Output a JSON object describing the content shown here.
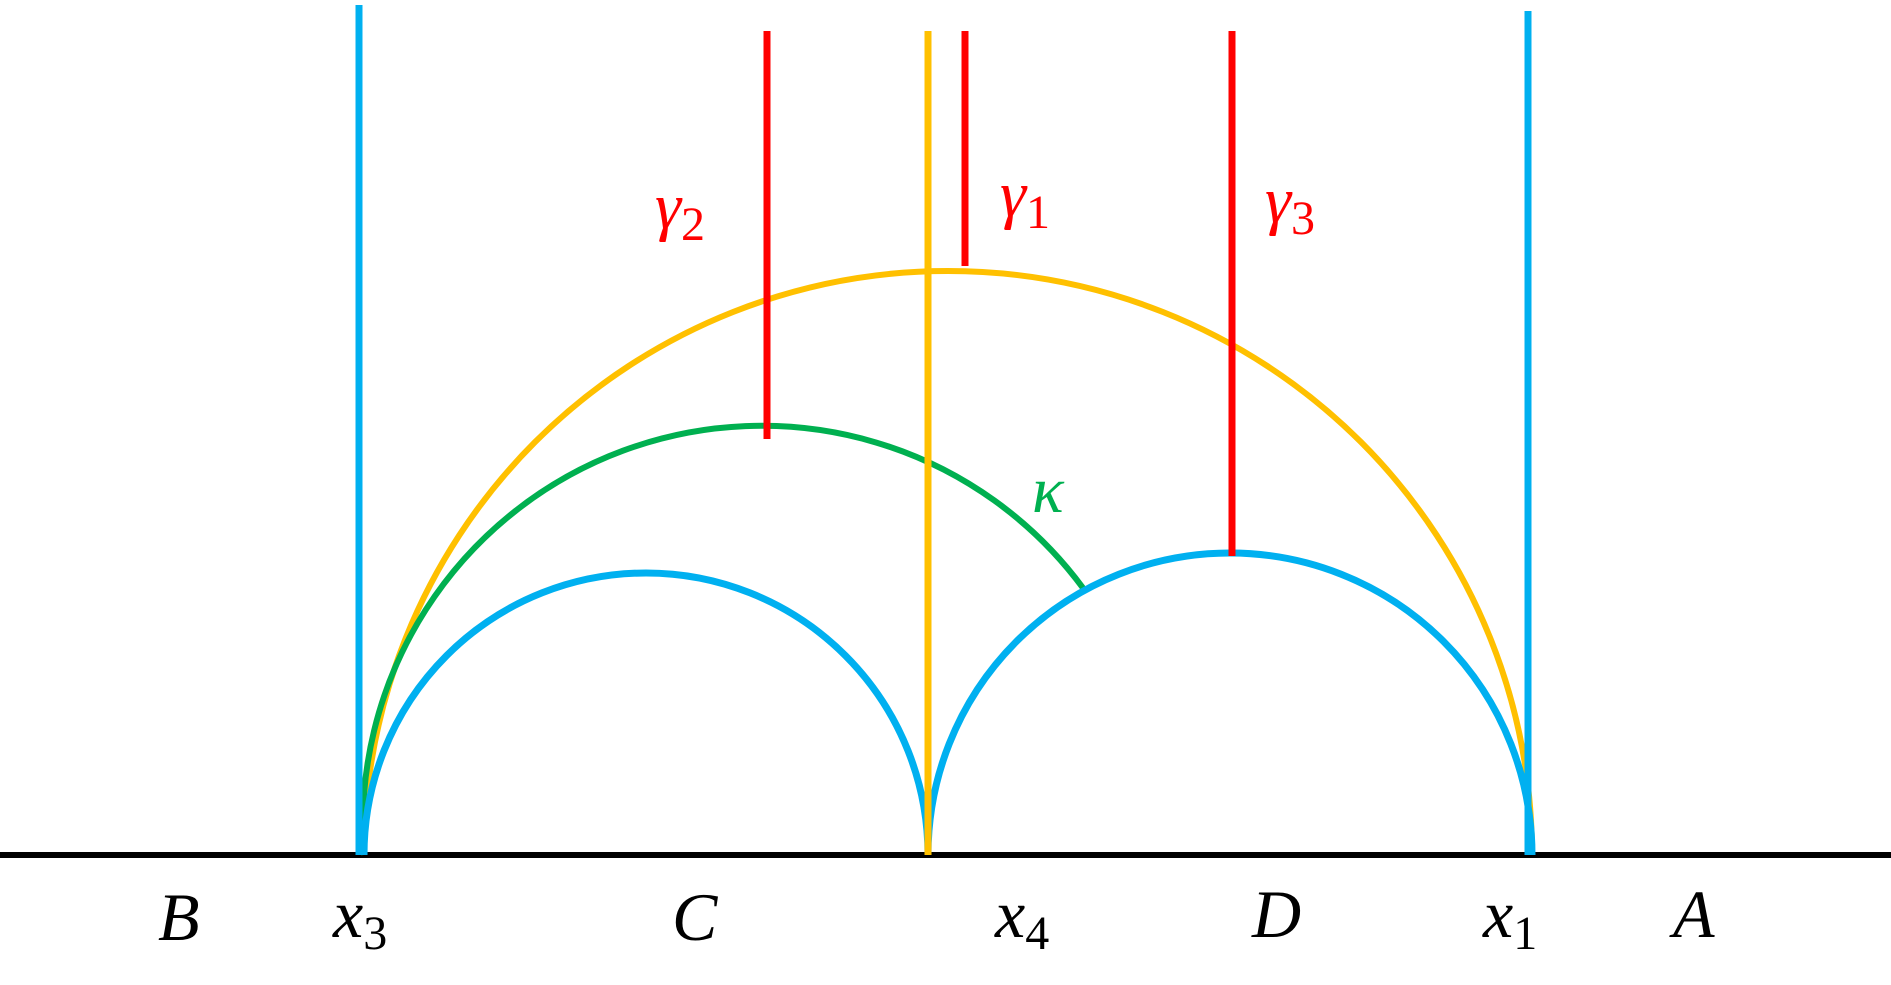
{
  "colors": {
    "blue": "#00B0F0",
    "yellow": "#FFC000",
    "green": "#00B050",
    "red": "#FF0000",
    "black": "#000000"
  },
  "labels": {
    "gamma2": {
      "base": "γ",
      "sub": "2"
    },
    "gamma1": {
      "base": "γ",
      "sub": "1"
    },
    "gamma3": {
      "base": "γ",
      "sub": "3"
    },
    "kappa": "κ",
    "B": "B",
    "x3": {
      "base": "x",
      "sub": "3"
    },
    "C": "C",
    "x4": {
      "base": "x",
      "sub": "4"
    },
    "D": "D",
    "x1": {
      "base": "x",
      "sub": "1"
    },
    "A": "A"
  }
}
